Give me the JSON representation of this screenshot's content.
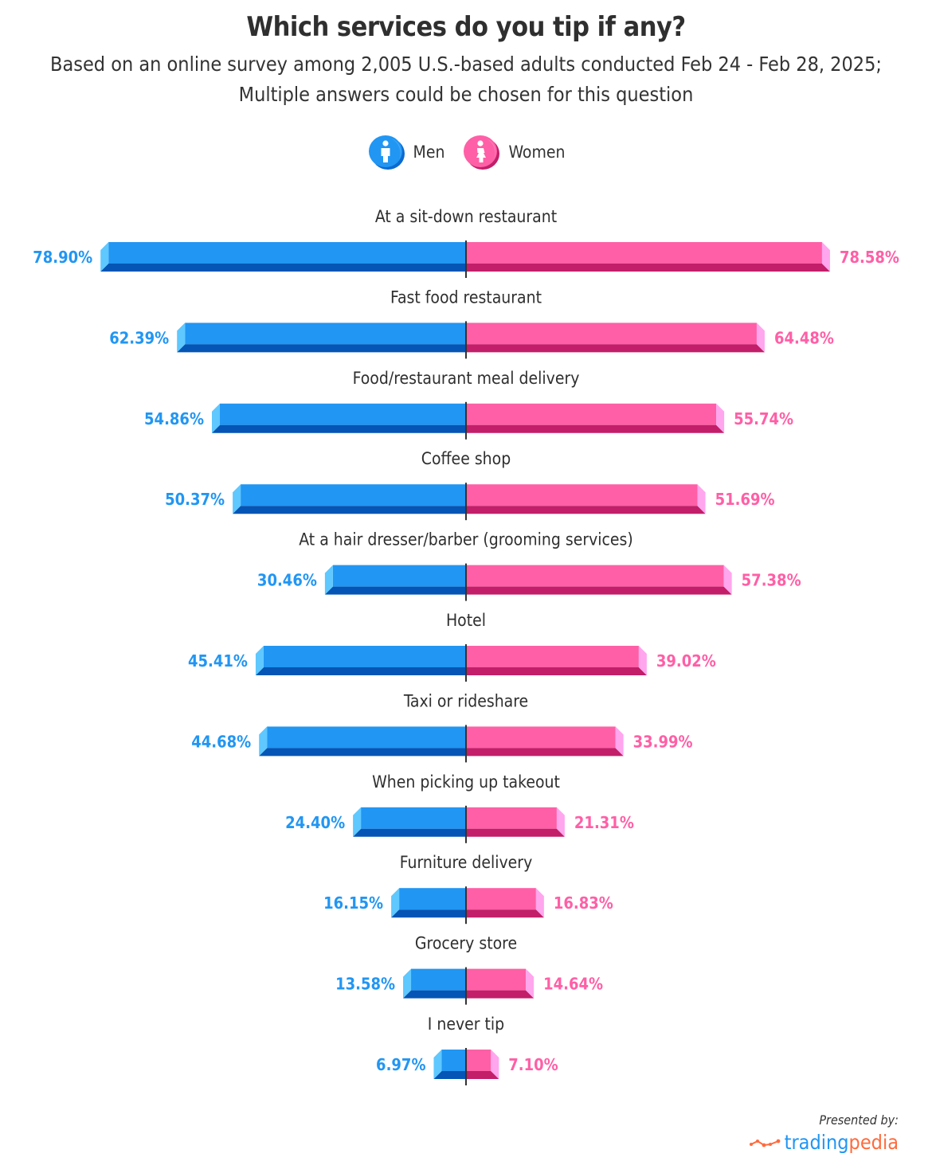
{
  "title": "Which services do you tip if any?",
  "subtitle_line1": "Based on an online survey among 2,005 U.S.-based adults conducted Feb 24 - Feb 28, 2025;",
  "subtitle_line2": "Multiple answers could be chosen for this question",
  "legend": [
    {
      "label": "Men",
      "icon": "man-icon",
      "color": "#2196f3"
    },
    {
      "label": "Women",
      "icon": "woman-icon",
      "color": "#ff5fa6"
    }
  ],
  "footer": {
    "presented_by": "Presented by:",
    "brand_part1": "trading",
    "brand_part2": "pedia",
    "brand_icon": "trend-line-icon"
  },
  "colors": {
    "men_face": "#2196f3",
    "men_bottom": "#0455b5",
    "men_cap": "#5ec8ff",
    "women_face": "#ff5fa6",
    "women_bottom": "#c21e69",
    "women_cap": "#ffa6ee",
    "axis": "#333333"
  },
  "chart_data": {
    "type": "bar",
    "orientation": "horizontal-butterfly",
    "title": "Which services do you tip if any?",
    "subtitle": "Based on an online survey among 2,005 U.S.-based adults conducted Feb 24 - Feb 28, 2025; Multiple answers could be chosen for this question",
    "unit": "%",
    "legend_placement": "top-center",
    "grid": false,
    "xlim": [
      0,
      100
    ],
    "categories": [
      "At a sit-down restaurant",
      "Fast food restaurant",
      "Food/restaurant meal delivery",
      "Coffee shop",
      "At a hair dresser/barber (grooming services)",
      "Hotel",
      "Taxi or rideshare",
      "When picking up takeout",
      "Furniture delivery",
      "Grocery store",
      "I never tip"
    ],
    "series": [
      {
        "name": "Men",
        "side": "left",
        "values": [
          78.9,
          62.39,
          54.86,
          50.37,
          30.46,
          45.41,
          44.68,
          24.4,
          16.15,
          13.58,
          6.97
        ],
        "labels": [
          "78.90%",
          "62.39%",
          "54.86%",
          "50.37%",
          "30.46%",
          "45.41%",
          "44.68%",
          "24.40%",
          "16.15%",
          "13.58%",
          "6.97%"
        ]
      },
      {
        "name": "Women",
        "side": "right",
        "values": [
          78.58,
          64.48,
          55.74,
          51.69,
          57.38,
          39.02,
          33.99,
          21.31,
          16.83,
          14.64,
          7.1
        ],
        "labels": [
          "78.58%",
          "64.48%",
          "55.74%",
          "51.69%",
          "57.38%",
          "39.02%",
          "33.99%",
          "21.31%",
          "16.83%",
          "14.64%",
          "7.10%"
        ]
      }
    ]
  }
}
